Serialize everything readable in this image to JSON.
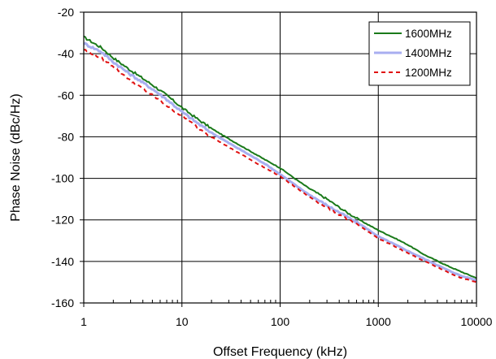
{
  "chart_data": {
    "type": "line",
    "title": "",
    "xlabel": "Offset Frequency (kHz)",
    "ylabel": "Phase Noise (dBc/Hz)",
    "x_scale": "log",
    "xlim": [
      1,
      10000
    ],
    "ylim": [
      -160,
      -20
    ],
    "grid": true,
    "legend_position": "top-right",
    "x_ticks": [
      1,
      10,
      100,
      1000,
      10000
    ],
    "x_tick_labels": [
      "1",
      "10",
      "100",
      "1000",
      "10000"
    ],
    "y_ticks": [
      -20,
      -40,
      -60,
      -80,
      -100,
      -120,
      -140,
      -160
    ],
    "y_tick_labels": [
      "-20",
      "-40",
      "-60",
      "-80",
      "-100",
      "-120",
      "-140",
      "-160"
    ],
    "series": [
      {
        "name": "1600MHz",
        "color": "#1a7a1a",
        "style": "solid",
        "x": [
          1,
          1.5,
          2,
          3,
          5,
          7,
          10,
          15,
          20,
          30,
          50,
          70,
          100,
          150,
          200,
          300,
          500,
          700,
          1000,
          1500,
          2000,
          3000,
          5000,
          7000,
          10000
        ],
        "y": [
          -32,
          -37,
          -42,
          -48,
          -55,
          -60,
          -66,
          -72,
          -76,
          -81,
          -87,
          -91,
          -95,
          -101,
          -105,
          -110,
          -117,
          -121,
          -125,
          -129,
          -132,
          -137,
          -142,
          -145,
          -148
        ]
      },
      {
        "name": "1400MHz",
        "color": "#a8aef0",
        "style": "solid",
        "x": [
          1,
          1.5,
          2,
          3,
          5,
          7,
          10,
          15,
          20,
          30,
          50,
          70,
          100,
          150,
          200,
          300,
          500,
          700,
          1000,
          1500,
          2000,
          3000,
          5000,
          7000,
          10000
        ],
        "y": [
          -35,
          -39,
          -44,
          -50,
          -57,
          -62,
          -68,
          -74,
          -78,
          -83,
          -89,
          -93,
          -98,
          -104,
          -108,
          -113,
          -119,
          -123,
          -128,
          -132,
          -135,
          -139,
          -144,
          -147,
          -149
        ]
      },
      {
        "name": "1200MHz",
        "color": "#e01010",
        "style": "dashed",
        "x": [
          1,
          1.5,
          2,
          3,
          5,
          7,
          10,
          15,
          20,
          30,
          50,
          70,
          100,
          150,
          200,
          300,
          500,
          700,
          1000,
          1500,
          2000,
          3000,
          5000,
          7000,
          10000
        ],
        "y": [
          -38,
          -42,
          -46,
          -53,
          -60,
          -65,
          -70,
          -76,
          -80,
          -85,
          -91,
          -95,
          -99,
          -105,
          -109,
          -114,
          -120,
          -124,
          -129,
          -133,
          -136,
          -140,
          -145,
          -148,
          -150
        ]
      }
    ]
  }
}
